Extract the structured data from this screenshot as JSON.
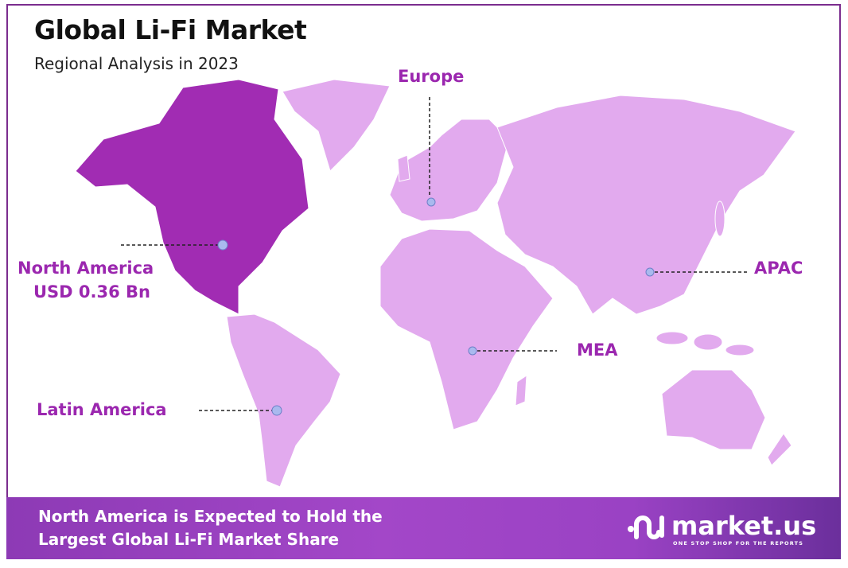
{
  "header": {
    "title": "Global Li-Fi Market",
    "subtitle": "Regional Analysis in 2023"
  },
  "regions": {
    "north_america": {
      "name": "North America",
      "value": "USD 0.36 Bn",
      "highlighted": true
    },
    "europe": {
      "name": "Europe"
    },
    "apac": {
      "name": "APAC"
    },
    "mea": {
      "name": "MEA"
    },
    "latin_america": {
      "name": "Latin America"
    }
  },
  "colors": {
    "highlight": "#a12cb3",
    "region": "#e2aaee",
    "label": "#9b27af",
    "marker": "#a9b9ee"
  },
  "footer": {
    "line1": "North America is Expected to Hold the",
    "line2": "Largest Global Li-Fi Market Share"
  },
  "logo": {
    "name": "market.us",
    "tagline": "ONE STOP SHOP FOR THE REPORTS"
  }
}
